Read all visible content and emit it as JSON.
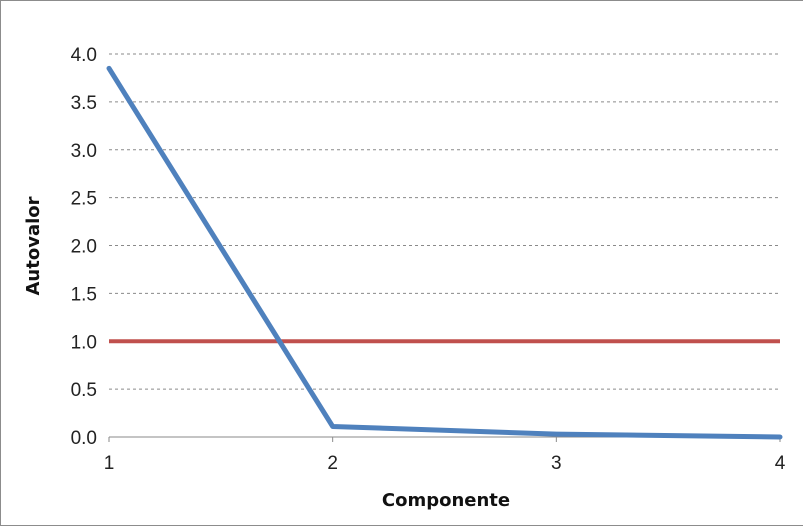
{
  "chart_data": {
    "type": "line",
    "title": "",
    "xlabel": "Componente",
    "ylabel": "Autovalor",
    "x": [
      1,
      2,
      3,
      4
    ],
    "xticks": [
      "1",
      "2",
      "3",
      "4"
    ],
    "xlim": [
      1,
      4
    ],
    "ylim": [
      0,
      4
    ],
    "yticks": [
      "0.0",
      "0.5",
      "1.0",
      "1.5",
      "2.0",
      "2.5",
      "3.0",
      "3.5",
      "4.0"
    ],
    "grid": "horizontal dashed",
    "legend": "none",
    "series": [
      {
        "values": [
          3.85,
          0.11,
          0.03,
          0.0
        ],
        "color": "#4f81bd"
      }
    ],
    "reference_line": {
      "y": 1.0,
      "color": "#c0504d"
    }
  }
}
